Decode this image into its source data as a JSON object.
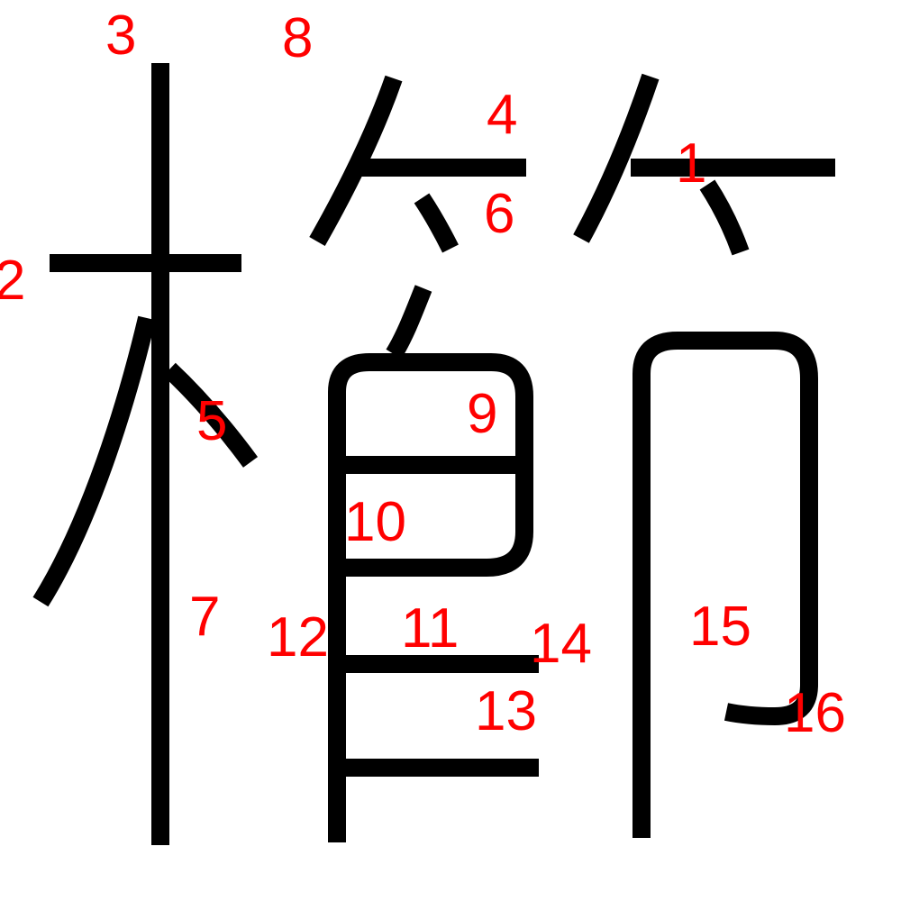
{
  "diagram": {
    "character": "櫛",
    "stroke_color": "#000000",
    "number_color": "#ff0000",
    "stroke_numbers": [
      "1",
      "2",
      "3",
      "4",
      "5",
      "6",
      "7",
      "8",
      "9",
      "10",
      "11",
      "12",
      "13",
      "14",
      "15",
      "16"
    ]
  }
}
